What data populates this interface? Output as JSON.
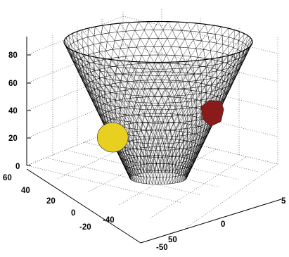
{
  "chart_data": {
    "type": "surface-3d",
    "title": "",
    "xlabel": "",
    "ylabel": "",
    "zlabel": "",
    "grid": true,
    "shape": "truncated-cone-triangle-mesh",
    "mesh_color": "#000000",
    "xlim": [
      -60,
      60
    ],
    "ylim": [
      -55,
      55
    ],
    "zlim": [
      0,
      90
    ],
    "xticks": [
      "-50",
      "0",
      "5"
    ],
    "yticks": [
      "60",
      "40",
      "20",
      "0",
      "-20",
      "-40"
    ],
    "zticks": [
      "0",
      "20",
      "40",
      "60",
      "80"
    ],
    "x_partial_label": "50",
    "cone": {
      "bottom_radius": 15,
      "top_radius": 50,
      "z_bottom": 0,
      "z_top": 90
    },
    "patches": [
      {
        "color": "#e8d020",
        "theta_deg": 205,
        "z": 30,
        "shape": "disc"
      },
      {
        "color": "#8b1a1a",
        "theta_deg": 330,
        "z": 48,
        "shape": "polygon"
      }
    ]
  }
}
